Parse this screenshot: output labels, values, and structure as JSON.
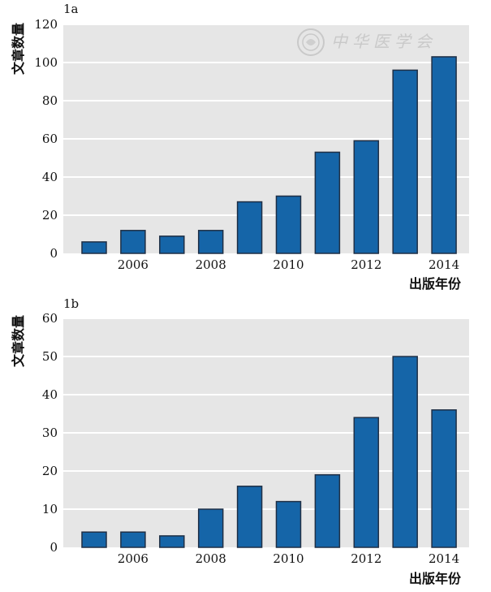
{
  "watermark": {
    "text": "中华医学会",
    "icon": "society-seal-icon"
  },
  "colors": {
    "bar": "#1565a8",
    "bar_stroke": "#1f2f45",
    "plot_bg": "#e6e6e6",
    "grid": "#ffffff"
  },
  "chart_data": [
    {
      "type": "bar",
      "panel_label": "1a",
      "ylabel": "文章数量",
      "xlabel": "出版年份",
      "categories": [
        "2005",
        "2006",
        "2007",
        "2008",
        "2009",
        "2010",
        "2011",
        "2012",
        "2013",
        "2014"
      ],
      "values": [
        6,
        12,
        9,
        12,
        27,
        30,
        53,
        59,
        96,
        103
      ],
      "ylim": [
        0,
        120
      ],
      "yticks": [
        0,
        20,
        40,
        60,
        80,
        100,
        120
      ],
      "xtick_labels": [
        "2006",
        "2008",
        "2010",
        "2012",
        "2014"
      ],
      "grid": true
    },
    {
      "type": "bar",
      "panel_label": "1b",
      "ylabel": "文章数量",
      "xlabel": "出版年份",
      "categories": [
        "2005",
        "2006",
        "2007",
        "2008",
        "2009",
        "2010",
        "2011",
        "2012",
        "2013",
        "2014"
      ],
      "values": [
        4,
        4,
        3,
        10,
        16,
        12,
        19,
        34,
        50,
        36
      ],
      "ylim": [
        0,
        60
      ],
      "yticks": [
        0,
        10,
        20,
        30,
        40,
        50,
        60
      ],
      "xtick_labels": [
        "2006",
        "2008",
        "2010",
        "2012",
        "2014"
      ],
      "grid": true
    }
  ]
}
